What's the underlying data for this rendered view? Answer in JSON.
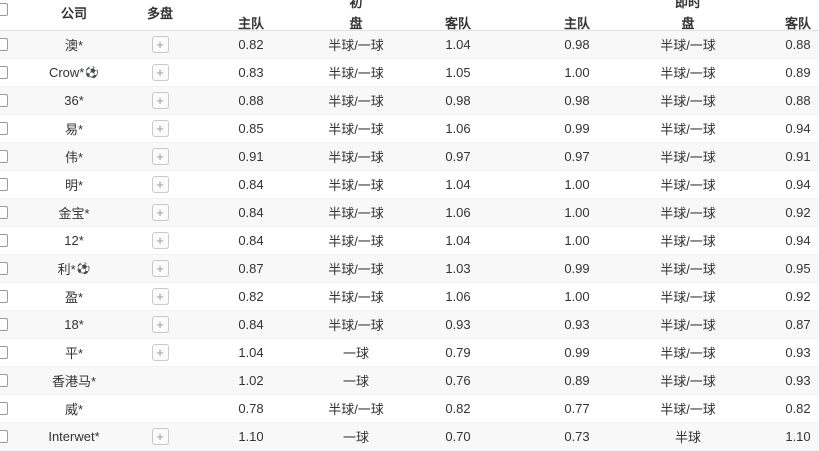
{
  "table": {
    "columns": {
      "group_initial": "初",
      "group_live": "即时",
      "company": "公司",
      "multi": "多盘",
      "home": "主队",
      "handicap": "盘",
      "away": "客队"
    },
    "controls": {
      "expand_label": "+",
      "ball_icon": "⚽"
    },
    "rows": [
      {
        "company": "澳*",
        "ball": false,
        "plus": true,
        "init_home": "0.82",
        "init_handicap": "半球/一球",
        "init_away": "1.04",
        "live_home": "0.98",
        "live_handicap": "半球/一球",
        "live_away": "0.88"
      },
      {
        "company": "Crow*",
        "ball": true,
        "plus": true,
        "init_home": "0.83",
        "init_handicap": "半球/一球",
        "init_away": "1.05",
        "live_home": "1.00",
        "live_handicap": "半球/一球",
        "live_away": "0.89"
      },
      {
        "company": "36*",
        "ball": false,
        "plus": true,
        "init_home": "0.88",
        "init_handicap": "半球/一球",
        "init_away": "0.98",
        "live_home": "0.98",
        "live_handicap": "半球/一球",
        "live_away": "0.88"
      },
      {
        "company": "易*",
        "ball": false,
        "plus": true,
        "init_home": "0.85",
        "init_handicap": "半球/一球",
        "init_away": "1.06",
        "live_home": "0.99",
        "live_handicap": "半球/一球",
        "live_away": "0.94"
      },
      {
        "company": "伟*",
        "ball": false,
        "plus": true,
        "init_home": "0.91",
        "init_handicap": "半球/一球",
        "init_away": "0.97",
        "live_home": "0.97",
        "live_handicap": "半球/一球",
        "live_away": "0.91"
      },
      {
        "company": "明*",
        "ball": false,
        "plus": true,
        "init_home": "0.84",
        "init_handicap": "半球/一球",
        "init_away": "1.04",
        "live_home": "1.00",
        "live_handicap": "半球/一球",
        "live_away": "0.94"
      },
      {
        "company": "金宝*",
        "ball": false,
        "plus": true,
        "init_home": "0.84",
        "init_handicap": "半球/一球",
        "init_away": "1.06",
        "live_home": "1.00",
        "live_handicap": "半球/一球",
        "live_away": "0.92"
      },
      {
        "company": "12*",
        "ball": false,
        "plus": true,
        "init_home": "0.84",
        "init_handicap": "半球/一球",
        "init_away": "1.04",
        "live_home": "1.00",
        "live_handicap": "半球/一球",
        "live_away": "0.94"
      },
      {
        "company": "利*",
        "ball": true,
        "plus": true,
        "init_home": "0.87",
        "init_handicap": "半球/一球",
        "init_away": "1.03",
        "live_home": "0.99",
        "live_handicap": "半球/一球",
        "live_away": "0.95"
      },
      {
        "company": "盈*",
        "ball": false,
        "plus": true,
        "init_home": "0.82",
        "init_handicap": "半球/一球",
        "init_away": "1.06",
        "live_home": "1.00",
        "live_handicap": "半球/一球",
        "live_away": "0.92"
      },
      {
        "company": "18*",
        "ball": false,
        "plus": true,
        "init_home": "0.84",
        "init_handicap": "半球/一球",
        "init_away": "0.93",
        "live_home": "0.93",
        "live_handicap": "半球/一球",
        "live_away": "0.87"
      },
      {
        "company": "平*",
        "ball": false,
        "plus": true,
        "init_home": "1.04",
        "init_handicap": "一球",
        "init_away": "0.79",
        "live_home": "0.99",
        "live_handicap": "半球/一球",
        "live_away": "0.93"
      },
      {
        "company": "香港马*",
        "ball": false,
        "plus": false,
        "init_home": "1.02",
        "init_handicap": "一球",
        "init_away": "0.76",
        "live_home": "0.89",
        "live_handicap": "半球/一球",
        "live_away": "0.93"
      },
      {
        "company": "威*",
        "ball": false,
        "plus": false,
        "init_home": "0.78",
        "init_handicap": "半球/一球",
        "init_away": "0.82",
        "live_home": "0.77",
        "live_handicap": "半球/一球",
        "live_away": "0.82"
      },
      {
        "company": "Interwet*",
        "ball": false,
        "plus": true,
        "init_home": "1.10",
        "init_handicap": "一球",
        "init_away": "0.70",
        "live_home": "0.73",
        "live_handicap": "半球",
        "live_away": "1.10"
      }
    ]
  },
  "colors": {
    "text": "#333333",
    "stripe": "#f8f8f8",
    "row_border": "#f1f1f1",
    "header_border": "#e2e2e2",
    "control_border": "#c9c9c9"
  }
}
